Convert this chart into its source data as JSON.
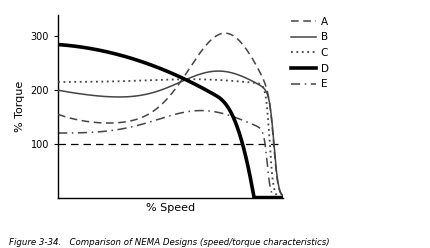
{
  "title": "Figure 3-34.   Comparison of NEMA Designs (speed/torque characteristics)",
  "xlabel": "% Speed",
  "ylabel": "% Torque",
  "yticks": [
    100,
    200,
    300
  ],
  "ylim": [
    0,
    340
  ],
  "xlim": [
    0,
    100
  ],
  "background": "#ffffff",
  "hline_y": 100,
  "legend_entries": [
    "A",
    "B",
    "C",
    "D",
    "E"
  ]
}
